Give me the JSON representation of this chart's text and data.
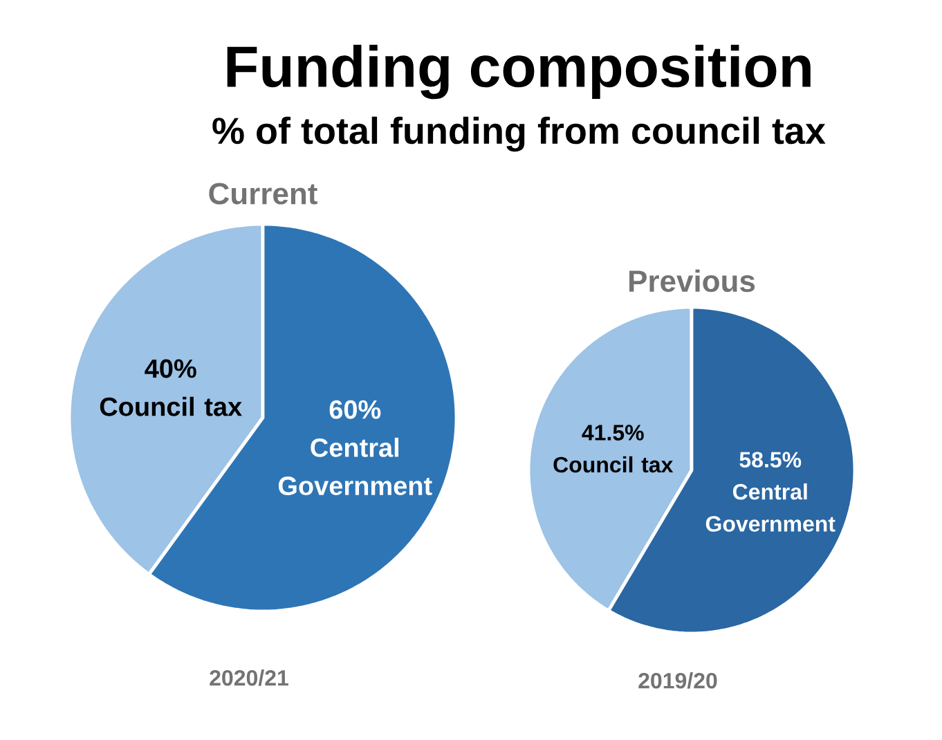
{
  "chart_data": [
    {
      "type": "pie",
      "title": "Funding composition",
      "subtitle": "% of total funding from council tax",
      "categories": [
        "Council tax",
        "Central Government"
      ],
      "values": [
        40,
        60
      ],
      "value_labels": [
        "40%",
        "60%"
      ],
      "colors": [
        "#9dc3e6",
        "#2e75b6"
      ],
      "annotations": [
        "Current",
        "2020/21"
      ]
    },
    {
      "type": "pie",
      "categories": [
        "Council tax",
        "Central Government"
      ],
      "values": [
        41.5,
        58.5
      ],
      "value_labels": [
        "41.5%",
        "58.5%"
      ],
      "colors": [
        "#9dc3e6",
        "#2a67a3"
      ],
      "annotations": [
        "Previous",
        "2019/20"
      ]
    }
  ]
}
